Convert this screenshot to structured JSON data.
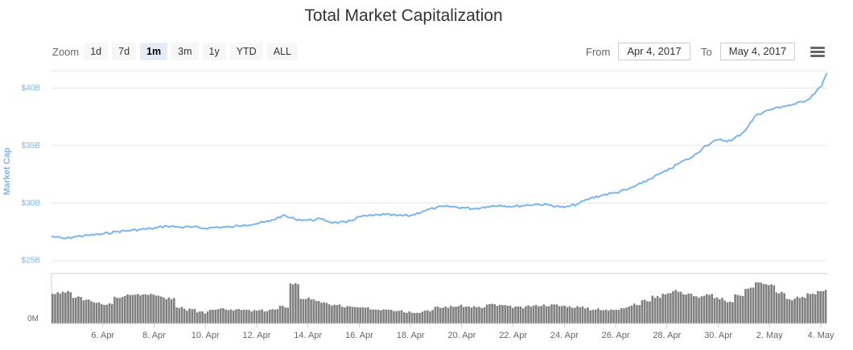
{
  "title": "Total Market Capitalization",
  "zoom": {
    "label": "Zoom",
    "buttons": [
      "1d",
      "7d",
      "1m",
      "3m",
      "1y",
      "YTD",
      "ALL"
    ],
    "active": "1m"
  },
  "range": {
    "from_label": "From",
    "from_value": "Apr 4, 2017",
    "to_label": "To",
    "to_value": "May 4, 2017"
  },
  "menu_icon": "hamburger-menu-icon",
  "colors": {
    "line": "#7cb5ec",
    "volume": "#808080",
    "grid": "#e6e6e6",
    "text": "#666666"
  },
  "chart_data": {
    "type": "line",
    "ylabel": "Market Cap",
    "y_unit": "USD (billions)",
    "ylim": [
      24,
      41.5
    ],
    "y_ticks": [
      {
        "value": 25,
        "label": "$25B"
      },
      {
        "value": 30,
        "label": "$30B"
      },
      {
        "value": 35,
        "label": "$35B"
      },
      {
        "value": 40,
        "label": "$40B"
      }
    ],
    "x_range": [
      "2017-04-04",
      "2017-05-04"
    ],
    "x_ticks": [
      "6. Apr",
      "8. Apr",
      "10. Apr",
      "12. Apr",
      "14. Apr",
      "16. Apr",
      "18. Apr",
      "20. Apr",
      "22. Apr",
      "24. Apr",
      "26. Apr",
      "28. Apr",
      "30. Apr",
      "2. May",
      "4. May"
    ],
    "x_tick_dates": [
      "2017-04-06",
      "2017-04-08",
      "2017-04-10",
      "2017-04-12",
      "2017-04-14",
      "2017-04-16",
      "2017-04-18",
      "2017-04-20",
      "2017-04-22",
      "2017-04-24",
      "2017-04-26",
      "2017-04-28",
      "2017-04-30",
      "2017-05-02",
      "2017-05-04"
    ],
    "grid": true,
    "legend": "none",
    "series": [
      {
        "points": [
          [
            "2017-04-04",
            27.1
          ],
          [
            "2017-04-04 12:00",
            26.9
          ],
          [
            "2017-04-05",
            27.1
          ],
          [
            "2017-04-05 12:00",
            27.2
          ],
          [
            "2017-04-06",
            27.3
          ],
          [
            "2017-04-06 12:00",
            27.5
          ],
          [
            "2017-04-07",
            27.6
          ],
          [
            "2017-04-07 12:00",
            27.7
          ],
          [
            "2017-04-08",
            27.8
          ],
          [
            "2017-04-08 12:00",
            28.0
          ],
          [
            "2017-04-09",
            27.9
          ],
          [
            "2017-04-09 12:00",
            27.9
          ],
          [
            "2017-04-10",
            27.8
          ],
          [
            "2017-04-10 12:00",
            27.9
          ],
          [
            "2017-04-11",
            27.9
          ],
          [
            "2017-04-11 12:00",
            28.1
          ],
          [
            "2017-04-12",
            28.2
          ],
          [
            "2017-04-12 12:00",
            28.4
          ],
          [
            "2017-04-13",
            28.9
          ],
          [
            "2017-04-13 12:00",
            28.6
          ],
          [
            "2017-04-14",
            28.5
          ],
          [
            "2017-04-14 12:00",
            28.6
          ],
          [
            "2017-04-15",
            28.3
          ],
          [
            "2017-04-15 12:00",
            28.3
          ],
          [
            "2017-04-16",
            28.8
          ],
          [
            "2017-04-16 12:00",
            28.9
          ],
          [
            "2017-04-17",
            29.0
          ],
          [
            "2017-04-17 12:00",
            28.9
          ],
          [
            "2017-04-18",
            28.9
          ],
          [
            "2017-04-18 12:00",
            29.3
          ],
          [
            "2017-04-19",
            29.6
          ],
          [
            "2017-04-19 12:00",
            29.7
          ],
          [
            "2017-04-20",
            29.6
          ],
          [
            "2017-04-20 12:00",
            29.5
          ],
          [
            "2017-04-21",
            29.7
          ],
          [
            "2017-04-21 12:00",
            29.8
          ],
          [
            "2017-04-22",
            29.7
          ],
          [
            "2017-04-22 12:00",
            29.8
          ],
          [
            "2017-04-23",
            29.9
          ],
          [
            "2017-04-23 12:00",
            29.8
          ],
          [
            "2017-04-24",
            29.6
          ],
          [
            "2017-04-24 12:00",
            29.9
          ],
          [
            "2017-04-25",
            30.4
          ],
          [
            "2017-04-25 12:00",
            30.7
          ],
          [
            "2017-04-26",
            30.9
          ],
          [
            "2017-04-26 12:00",
            31.2
          ],
          [
            "2017-04-27",
            31.7
          ],
          [
            "2017-04-27 12:00",
            32.3
          ],
          [
            "2017-04-28",
            32.8
          ],
          [
            "2017-04-28 12:00",
            33.5
          ],
          [
            "2017-04-29",
            34.0
          ],
          [
            "2017-04-29 12:00",
            35.0
          ],
          [
            "2017-04-30",
            35.5
          ],
          [
            "2017-04-30 12:00",
            35.4
          ],
          [
            "2017-05-01",
            36.2
          ],
          [
            "2017-05-01 12:00",
            37.7
          ],
          [
            "2017-05-02",
            38.1
          ],
          [
            "2017-05-02 12:00",
            38.4
          ],
          [
            "2017-05-03",
            38.6
          ],
          [
            "2017-05-03 12:00",
            39.0
          ],
          [
            "2017-05-04",
            40.1
          ],
          [
            "2017-05-04 06:00",
            41.3
          ]
        ]
      }
    ],
    "volume": {
      "label": "0M",
      "relative_heights": [
        0.72,
        0.75,
        0.62,
        0.56,
        0.48,
        0.46,
        0.62,
        0.68,
        0.7,
        0.71,
        0.64,
        0.6,
        0.38,
        0.33,
        0.26,
        0.3,
        0.36,
        0.34,
        0.32,
        0.3,
        0.31,
        0.33,
        0.4,
        0.95,
        0.6,
        0.55,
        0.48,
        0.44,
        0.4,
        0.38,
        0.36,
        0.34,
        0.35,
        0.32,
        0.28,
        0.28,
        0.32,
        0.38,
        0.4,
        0.42,
        0.4,
        0.38,
        0.45,
        0.43,
        0.4,
        0.38,
        0.42,
        0.44,
        0.44,
        0.42,
        0.4,
        0.38,
        0.34,
        0.32,
        0.35,
        0.38,
        0.45,
        0.55,
        0.64,
        0.72,
        0.78,
        0.7,
        0.64,
        0.68,
        0.6,
        0.52,
        0.68,
        0.85,
        0.97,
        0.92,
        0.74,
        0.58,
        0.62,
        0.72,
        0.78
      ]
    }
  }
}
